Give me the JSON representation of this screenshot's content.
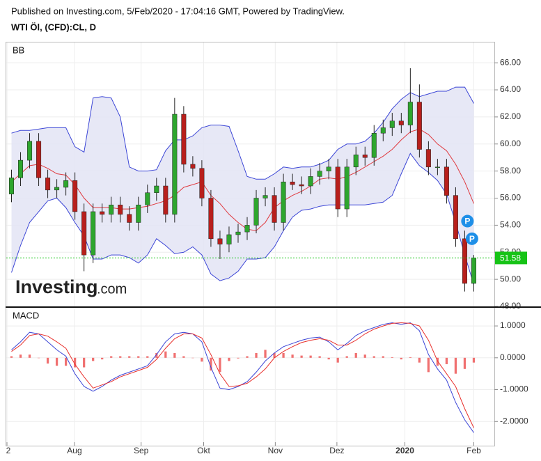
{
  "chart_data": [
    {
      "type": "candlestick",
      "subtitle": "Published on Investing.com, 5/Feb/2020 - 17:04:16 GMT, Powered by TradingView.",
      "title": "WTI Öl, (CFD):CL, D",
      "label": "BB",
      "watermark": "Investing",
      "watermark_suffix": ".com",
      "xlim": [
        -0.5,
        52.5
      ],
      "ylim": [
        48,
        67.5
      ],
      "yticks": [
        {
          "value": 48,
          "label": "48.00"
        },
        {
          "value": 50,
          "label": "50.00"
        },
        {
          "value": 52,
          "label": "52.00"
        },
        {
          "value": 54,
          "label": "54.00"
        },
        {
          "value": 56,
          "label": "56.00"
        },
        {
          "value": 58,
          "label": "58.00"
        },
        {
          "value": 60,
          "label": "60.00"
        },
        {
          "value": 62,
          "label": "62.00"
        },
        {
          "value": 64,
          "label": "64.00"
        },
        {
          "value": 66,
          "label": "66.00"
        }
      ],
      "grid": true,
      "up_color": "#2ea62e",
      "down_color": "#b81f1c",
      "x": [
        0,
        1,
        2,
        3,
        4,
        5,
        6,
        7,
        8,
        9,
        10,
        11,
        12,
        13,
        14,
        15,
        16,
        17,
        18,
        19,
        20,
        21,
        22,
        23,
        24,
        25,
        26,
        27,
        28,
        29,
        30,
        31,
        32,
        33,
        34,
        35,
        36,
        37,
        38,
        39,
        40,
        41,
        42,
        43,
        44,
        45,
        46,
        47,
        48,
        49,
        50,
        51
      ],
      "open": [
        56.3,
        57.5,
        58.8,
        60.2,
        57.5,
        56.6,
        56.8,
        57.3,
        55,
        51.8,
        55,
        54.8,
        55.5,
        54.8,
        54.2,
        55.5,
        56.4,
        56.9,
        54.8,
        62.2,
        58.5,
        58.2,
        56,
        53,
        52.6,
        53.3,
        53.5,
        54,
        56,
        56.2,
        54.2,
        57.2,
        57,
        56.9,
        57.6,
        58,
        58.3,
        55.2,
        58.3,
        59.2,
        59,
        60.8,
        61.2,
        61.7,
        61.4,
        63.1,
        59.6,
        58.3,
        58.3,
        56.2,
        53,
        49.7
      ],
      "high": [
        58.1,
        59.4,
        60.8,
        60.8,
        58.1,
        57.4,
        57.9,
        57.9,
        55.6,
        55.6,
        55.6,
        56.1,
        56.1,
        55.4,
        56.1,
        57,
        57.5,
        57.5,
        63.4,
        62.8,
        59.1,
        58.8,
        56.6,
        53.6,
        53.9,
        54.1,
        54.6,
        56.6,
        56.8,
        56.8,
        57.8,
        57.8,
        57.6,
        58.2,
        58.6,
        58.9,
        58.9,
        58.9,
        59.8,
        59.8,
        61.4,
        61.8,
        62.3,
        62.3,
        65.6,
        64.4,
        60.2,
        58.9,
        58.9,
        56.8,
        53.6,
        51.8
      ],
      "low": [
        55.7,
        56.9,
        58.2,
        56.9,
        56,
        56,
        56.2,
        54.4,
        50.6,
        51.2,
        54.2,
        54.2,
        54.2,
        53.6,
        53.6,
        54.9,
        55.8,
        54.2,
        54.2,
        57.9,
        57.6,
        55.4,
        52.4,
        51.5,
        52,
        52.7,
        52.9,
        53.4,
        55.4,
        53.6,
        53.6,
        56.6,
        56.3,
        56.3,
        57,
        57.4,
        54.6,
        54.6,
        57.7,
        58.4,
        58.4,
        60.2,
        60.6,
        60.8,
        60.8,
        59,
        57.7,
        57.7,
        55.6,
        52.4,
        49.1,
        49.1
      ],
      "close": [
        57.5,
        58.8,
        60.2,
        57.5,
        56.6,
        56.8,
        57.3,
        55,
        51.8,
        55,
        54.8,
        55.5,
        54.8,
        54.2,
        55.5,
        56.4,
        56.9,
        54.8,
        62.2,
        58.5,
        58.2,
        56,
        53,
        52.6,
        53.3,
        53.5,
        54,
        56,
        56.2,
        54.2,
        57.2,
        57,
        56.9,
        57.6,
        58,
        58.3,
        55.2,
        58.3,
        59.2,
        59,
        60.8,
        61.2,
        61.7,
        61.4,
        63.1,
        59.6,
        58.3,
        58.3,
        56.2,
        53,
        49.7,
        51.58
      ],
      "band_fill": "#e3e4f5",
      "series": [
        {
          "color": "#3b45d6",
          "values": [
            60.8,
            61,
            61,
            61.1,
            61.2,
            61.2,
            61.2,
            59.8,
            59.4,
            63.4,
            63.5,
            63.4,
            62,
            58.3,
            58,
            58,
            58.1,
            59.5,
            60.3,
            60.3,
            60.6,
            61.2,
            61.4,
            61.4,
            61.3,
            59.5,
            57.6,
            57.4,
            57.4,
            57.8,
            58.3,
            58.2,
            58.3,
            58.3,
            58.5,
            58.8,
            59.6,
            60,
            60,
            60.2,
            60.8,
            61.6,
            62.6,
            63.3,
            63.8,
            63.5,
            63.7,
            63.9,
            63.9,
            64.2,
            64.2,
            63
          ]
        },
        {
          "color": "#e0393e",
          "values": [
            57.2,
            57.8,
            58.4,
            58.5,
            58.2,
            57.8,
            57.7,
            57,
            56,
            55.3,
            55.3,
            55.3,
            55.2,
            55.2,
            55.3,
            55.4,
            55.6,
            55.8,
            56.2,
            56.8,
            57,
            57.2,
            56.2,
            55.6,
            54.8,
            54.2,
            53.7,
            53.6,
            54.2,
            55.3,
            55.8,
            56.2,
            56.5,
            56.9,
            57.4,
            57.5,
            57.4,
            57.6,
            57.9,
            58.3,
            58.7,
            59.1,
            59.6,
            60.3,
            60.9,
            61.1,
            60.7,
            60,
            59.5,
            58.5,
            57.2,
            55.6
          ]
        },
        {
          "color": "#3b45d6",
          "values": [
            50.5,
            52.5,
            54.2,
            55,
            55.8,
            56,
            55.3,
            54.2,
            53.2,
            51.5,
            51.5,
            51.8,
            51.8,
            51.6,
            51.2,
            51.8,
            53,
            52.5,
            51.9,
            52,
            52.4,
            51.8,
            50.4,
            49.9,
            50.1,
            50.6,
            51.5,
            51.5,
            51.6,
            52.4,
            53.6,
            54.6,
            55.1,
            55.2,
            55.4,
            55.5,
            55.5,
            55.5,
            55.5,
            55.5,
            55.6,
            55.7,
            56.2,
            57.8,
            59.3,
            58.4,
            57.9,
            57.3,
            56.3,
            54.2,
            51.8,
            49.6
          ]
        }
      ],
      "last_value": 51.58,
      "last_color": "#16c316",
      "annotations": [
        {
          "label": "P",
          "x": 50.3,
          "y": 54.3
        },
        {
          "label": "P",
          "x": 50.8,
          "y": 53
        }
      ],
      "annotation_color": "#1e8fe8"
    },
    {
      "type": "line",
      "label": "MACD",
      "xlim": [
        -0.5,
        52.5
      ],
      "xticks": [
        {
          "value": -0.5,
          "label": "2"
        },
        {
          "value": 6.95,
          "label": "Aug"
        },
        {
          "value": 14.3,
          "label": "Sep"
        },
        {
          "value": 21.2,
          "label": "Okt"
        },
        {
          "value": 29.1,
          "label": "Nov"
        },
        {
          "value": 35.9,
          "label": "Dez"
        },
        {
          "value": 43.4,
          "label": "2020"
        },
        {
          "value": 51,
          "label": "Feb"
        }
      ],
      "ylim": [
        -2.65,
        1.57
      ],
      "yticks": [
        {
          "value": -2,
          "label": "-2.0000"
        },
        {
          "value": -1,
          "label": "-1.0000"
        },
        {
          "value": 0,
          "label": "0.0000"
        },
        {
          "value": 1,
          "label": "1.0000"
        }
      ],
      "grid": true,
      "x": [
        0,
        1,
        2,
        3,
        4,
        5,
        6,
        7,
        8,
        9,
        10,
        11,
        12,
        13,
        14,
        15,
        16,
        17,
        18,
        19,
        20,
        21,
        22,
        23,
        24,
        25,
        26,
        27,
        28,
        29,
        30,
        31,
        32,
        33,
        34,
        35,
        36,
        37,
        38,
        39,
        40,
        41,
        42,
        43,
        44,
        45,
        46,
        47,
        48,
        49,
        50,
        51
      ],
      "series": [
        {
          "color": "#3b45d6",
          "values": [
            0.25,
            0.5,
            0.8,
            0.75,
            0.5,
            0.25,
            0.05,
            -0.5,
            -0.9,
            -1.05,
            -0.9,
            -0.7,
            -0.55,
            -0.45,
            -0.35,
            -0.25,
            0.1,
            0.5,
            0.75,
            0.8,
            0.75,
            0.5,
            -0.3,
            -0.95,
            -1,
            -0.9,
            -0.75,
            -0.45,
            -0.1,
            0.15,
            0.35,
            0.45,
            0.55,
            0.62,
            0.65,
            0.5,
            0.25,
            0.45,
            0.7,
            0.85,
            0.95,
            1.05,
            1.1,
            1.05,
            1.1,
            0.85,
            0.1,
            -0.35,
            -0.7,
            -1.4,
            -1.95,
            -2.35
          ]
        },
        {
          "color": "#e8302c",
          "values": [
            0.2,
            0.4,
            0.7,
            0.75,
            0.68,
            0.5,
            0.3,
            -0.2,
            -0.6,
            -0.95,
            -0.85,
            -0.75,
            -0.6,
            -0.5,
            -0.4,
            -0.3,
            -0.05,
            0.3,
            0.6,
            0.75,
            0.75,
            0.62,
            0.1,
            -0.5,
            -0.9,
            -0.88,
            -0.8,
            -0.6,
            -0.35,
            0,
            0.2,
            0.35,
            0.48,
            0.55,
            0.6,
            0.55,
            0.4,
            0.4,
            0.55,
            0.75,
            0.9,
            1,
            1.08,
            1.1,
            1.08,
            1,
            0.55,
            -0.1,
            -0.5,
            -0.9,
            -1.6,
            -2.2
          ]
        }
      ],
      "histogram": {
        "color": "#f07070",
        "values": [
          0.05,
          0.1,
          0.1,
          0,
          -0.18,
          -0.25,
          -0.25,
          -0.3,
          -0.3,
          -0.1,
          -0.05,
          0.05,
          0.05,
          0.05,
          0.05,
          0.05,
          0.15,
          0.2,
          0.15,
          0.05,
          0,
          -0.12,
          -0.4,
          -0.45,
          -0.1,
          -0.02,
          0.05,
          0.15,
          0.25,
          0.15,
          0.15,
          0.1,
          0.07,
          0.07,
          0.05,
          -0.05,
          -0.15,
          0.05,
          0.15,
          0.1,
          0.05,
          0.05,
          0.02,
          -0.05,
          0.02,
          -0.15,
          -0.45,
          -0.25,
          -0.2,
          -0.5,
          -0.35,
          -0.15
        ]
      }
    }
  ]
}
